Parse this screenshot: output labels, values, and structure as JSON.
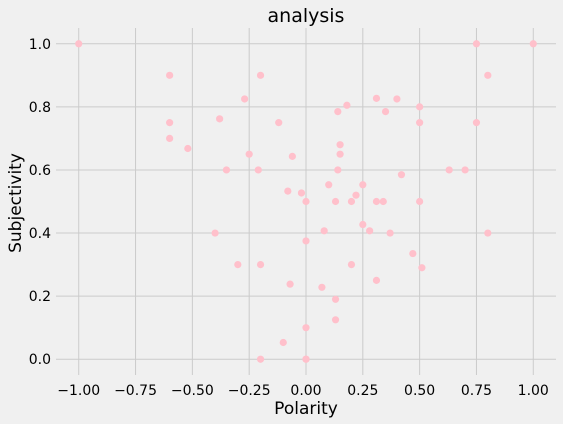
{
  "chart_data": {
    "type": "scatter",
    "title": "analysis",
    "xlabel": "Polarity",
    "ylabel": "Subjectivity",
    "xlim": [
      -1.1,
      1.1
    ],
    "ylim": [
      -0.05,
      1.05
    ],
    "xticks": [
      -1.0,
      -0.75,
      -0.5,
      -0.25,
      0.0,
      0.25,
      0.5,
      0.75,
      1.0
    ],
    "yticks": [
      0.0,
      0.2,
      0.4,
      0.6,
      0.8,
      1.0
    ],
    "xtick_labels": [
      "−1.00",
      "−0.75",
      "−0.50",
      "−0.25",
      "0.00",
      "0.25",
      "0.50",
      "0.75",
      "1.00"
    ],
    "ytick_labels": [
      "0.0",
      "0.2",
      "0.4",
      "0.6",
      "0.8",
      "1.0"
    ],
    "grid": true,
    "point_color": "#ffc0cb",
    "background": "#f0f0f0",
    "points": [
      [
        -1.0,
        1.0
      ],
      [
        0.75,
        1.0
      ],
      [
        1.0,
        1.0
      ],
      [
        -0.6,
        0.9
      ],
      [
        -0.2,
        0.9
      ],
      [
        0.8,
        0.9
      ],
      [
        -0.27,
        0.825
      ],
      [
        0.18,
        0.805
      ],
      [
        0.31,
        0.827
      ],
      [
        0.4,
        0.825
      ],
      [
        0.14,
        0.785
      ],
      [
        0.35,
        0.785
      ],
      [
        0.5,
        0.8
      ],
      [
        -0.38,
        0.762
      ],
      [
        -0.6,
        0.75
      ],
      [
        -0.12,
        0.75
      ],
      [
        0.5,
        0.75
      ],
      [
        0.75,
        0.75
      ],
      [
        -0.6,
        0.7
      ],
      [
        -0.52,
        0.668
      ],
      [
        0.15,
        0.68
      ],
      [
        -0.25,
        0.65
      ],
      [
        -0.06,
        0.643
      ],
      [
        0.15,
        0.65
      ],
      [
        -0.35,
        0.6
      ],
      [
        -0.21,
        0.6
      ],
      [
        0.14,
        0.6
      ],
      [
        0.63,
        0.6
      ],
      [
        0.7,
        0.6
      ],
      [
        0.42,
        0.585
      ],
      [
        0.1,
        0.553
      ],
      [
        0.25,
        0.553
      ],
      [
        -0.08,
        0.533
      ],
      [
        -0.02,
        0.527
      ],
      [
        0.22,
        0.52
      ],
      [
        0.0,
        0.5
      ],
      [
        0.13,
        0.5
      ],
      [
        0.2,
        0.5
      ],
      [
        0.31,
        0.5
      ],
      [
        0.34,
        0.5
      ],
      [
        0.5,
        0.5
      ],
      [
        0.25,
        0.427
      ],
      [
        0.08,
        0.407
      ],
      [
        0.28,
        0.407
      ],
      [
        -0.4,
        0.4
      ],
      [
        0.37,
        0.4
      ],
      [
        0.8,
        0.4
      ],
      [
        0.0,
        0.375
      ],
      [
        0.47,
        0.335
      ],
      [
        -0.3,
        0.3
      ],
      [
        -0.2,
        0.3
      ],
      [
        0.2,
        0.3
      ],
      [
        0.51,
        0.29
      ],
      [
        0.31,
        0.25
      ],
      [
        -0.07,
        0.238
      ],
      [
        0.07,
        0.228
      ],
      [
        0.13,
        0.19
      ],
      [
        0.13,
        0.125
      ],
      [
        0.0,
        0.1
      ],
      [
        -0.1,
        0.053
      ],
      [
        -0.2,
        0.0
      ],
      [
        0.0,
        0.0
      ],
      [
        0.0,
        0.0
      ]
    ]
  }
}
